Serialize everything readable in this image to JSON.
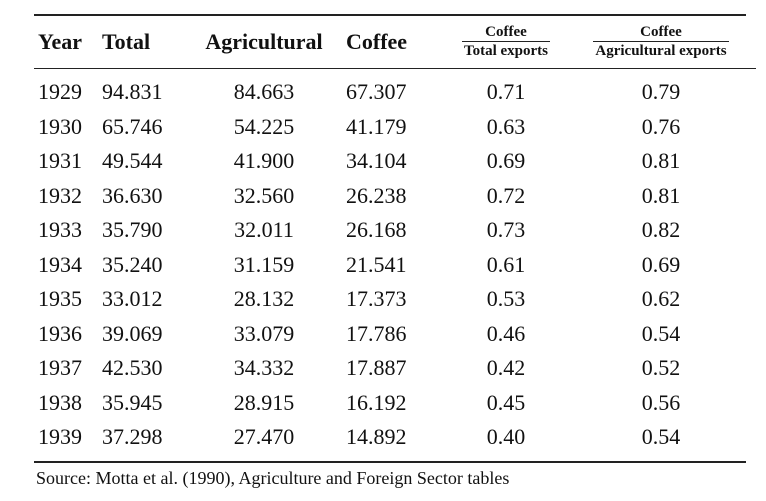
{
  "table": {
    "headers": {
      "year": "Year",
      "total": "Total",
      "agricultural": "Agricultural",
      "coffee": "Coffee",
      "ratio_total": {
        "numerator": "Coffee",
        "denominator": "Total exports"
      },
      "ratio_agri": {
        "numerator": "Coffee",
        "denominator": "Agricultural exports"
      }
    },
    "rows": [
      {
        "year": "1929",
        "total": "94.831",
        "agricultural": "84.663",
        "coffee": "67.307",
        "ratio_total": "0.71",
        "ratio_agri": "0.79"
      },
      {
        "year": "1930",
        "total": "65.746",
        "agricultural": "54.225",
        "coffee": "41.179",
        "ratio_total": "0.63",
        "ratio_agri": "0.76"
      },
      {
        "year": "1931",
        "total": "49.544",
        "agricultural": "41.900",
        "coffee": "34.104",
        "ratio_total": "0.69",
        "ratio_agri": "0.81"
      },
      {
        "year": "1932",
        "total": "36.630",
        "agricultural": "32.560",
        "coffee": "26.238",
        "ratio_total": "0.72",
        "ratio_agri": "0.81"
      },
      {
        "year": "1933",
        "total": "35.790",
        "agricultural": "32.011",
        "coffee": "26.168",
        "ratio_total": "0.73",
        "ratio_agri": "0.82"
      },
      {
        "year": "1934",
        "total": "35.240",
        "agricultural": "31.159",
        "coffee": "21.541",
        "ratio_total": "0.61",
        "ratio_agri": "0.69"
      },
      {
        "year": "1935",
        "total": "33.012",
        "agricultural": "28.132",
        "coffee": "17.373",
        "ratio_total": "0.53",
        "ratio_agri": "0.62"
      },
      {
        "year": "1936",
        "total": "39.069",
        "agricultural": "33.079",
        "coffee": "17.786",
        "ratio_total": "0.46",
        "ratio_agri": "0.54"
      },
      {
        "year": "1937",
        "total": "42.530",
        "agricultural": "34.332",
        "coffee": "17.887",
        "ratio_total": "0.42",
        "ratio_agri": "0.52"
      },
      {
        "year": "1938",
        "total": "35.945",
        "agricultural": "28.915",
        "coffee": "16.192",
        "ratio_total": "0.45",
        "ratio_agri": "0.56"
      },
      {
        "year": "1939",
        "total": "37.298",
        "agricultural": "27.470",
        "coffee": "14.892",
        "ratio_total": "0.40",
        "ratio_agri": "0.54"
      }
    ]
  },
  "source": "Source: Motta et al. (1990), Agriculture and Foreign Sector tables"
}
